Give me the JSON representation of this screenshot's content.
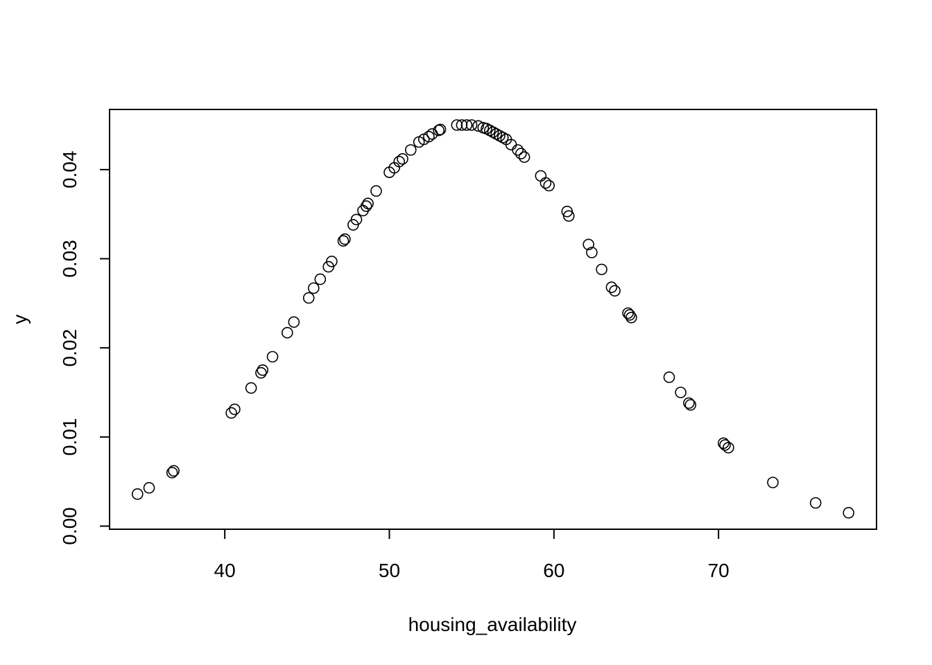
{
  "chart_data": {
    "type": "scatter",
    "title": "",
    "xlabel": "housing_availability",
    "ylabel": "y",
    "xlim": [
      33,
      79.6
    ],
    "ylim": [
      -0.00035,
      0.04675
    ],
    "x_ticks": [
      40,
      50,
      60,
      70
    ],
    "x_tick_labels": [
      "40",
      "50",
      "60",
      "70"
    ],
    "y_ticks": [
      0.0,
      0.01,
      0.02,
      0.03,
      0.04
    ],
    "y_tick_labels": [
      "0.00",
      "0.01",
      "0.02",
      "0.03",
      "0.04"
    ],
    "grid": false,
    "legend": "none",
    "marker": "open-circle",
    "points": [
      {
        "x": 34.7,
        "y": 0.0036
      },
      {
        "x": 35.4,
        "y": 0.0043
      },
      {
        "x": 36.8,
        "y": 0.006
      },
      {
        "x": 36.9,
        "y": 0.0062
      },
      {
        "x": 40.4,
        "y": 0.0127
      },
      {
        "x": 40.6,
        "y": 0.0131
      },
      {
        "x": 41.6,
        "y": 0.0155
      },
      {
        "x": 42.2,
        "y": 0.0172
      },
      {
        "x": 42.3,
        "y": 0.0175
      },
      {
        "x": 42.9,
        "y": 0.019
      },
      {
        "x": 43.8,
        "y": 0.0217
      },
      {
        "x": 44.2,
        "y": 0.0229
      },
      {
        "x": 45.1,
        "y": 0.0256
      },
      {
        "x": 45.4,
        "y": 0.0267
      },
      {
        "x": 45.8,
        "y": 0.0277
      },
      {
        "x": 46.3,
        "y": 0.0291
      },
      {
        "x": 46.5,
        "y": 0.0297
      },
      {
        "x": 47.2,
        "y": 0.032
      },
      {
        "x": 47.3,
        "y": 0.0322
      },
      {
        "x": 47.8,
        "y": 0.0338
      },
      {
        "x": 48.0,
        "y": 0.0344
      },
      {
        "x": 48.4,
        "y": 0.0354
      },
      {
        "x": 48.6,
        "y": 0.0359
      },
      {
        "x": 48.7,
        "y": 0.0362
      },
      {
        "x": 49.2,
        "y": 0.0376
      },
      {
        "x": 50.0,
        "y": 0.0397
      },
      {
        "x": 50.3,
        "y": 0.0402
      },
      {
        "x": 50.6,
        "y": 0.0409
      },
      {
        "x": 50.8,
        "y": 0.0412
      },
      {
        "x": 51.3,
        "y": 0.0422
      },
      {
        "x": 51.8,
        "y": 0.0431
      },
      {
        "x": 52.1,
        "y": 0.0434
      },
      {
        "x": 52.4,
        "y": 0.0437
      },
      {
        "x": 52.6,
        "y": 0.044
      },
      {
        "x": 53.0,
        "y": 0.0444
      },
      {
        "x": 53.1,
        "y": 0.0445
      },
      {
        "x": 54.1,
        "y": 0.045
      },
      {
        "x": 54.4,
        "y": 0.045
      },
      {
        "x": 54.7,
        "y": 0.045
      },
      {
        "x": 55.0,
        "y": 0.045
      },
      {
        "x": 55.4,
        "y": 0.0449
      },
      {
        "x": 55.7,
        "y": 0.0447
      },
      {
        "x": 55.9,
        "y": 0.0446
      },
      {
        "x": 56.1,
        "y": 0.0444
      },
      {
        "x": 56.3,
        "y": 0.0442
      },
      {
        "x": 56.5,
        "y": 0.044
      },
      {
        "x": 56.7,
        "y": 0.0438
      },
      {
        "x": 56.9,
        "y": 0.0436
      },
      {
        "x": 57.1,
        "y": 0.0434
      },
      {
        "x": 57.4,
        "y": 0.0428
      },
      {
        "x": 57.8,
        "y": 0.0422
      },
      {
        "x": 58.0,
        "y": 0.0418
      },
      {
        "x": 58.2,
        "y": 0.0414
      },
      {
        "x": 59.2,
        "y": 0.0393
      },
      {
        "x": 59.5,
        "y": 0.0385
      },
      {
        "x": 59.7,
        "y": 0.0382
      },
      {
        "x": 60.8,
        "y": 0.0353
      },
      {
        "x": 60.9,
        "y": 0.0348
      },
      {
        "x": 62.1,
        "y": 0.0316
      },
      {
        "x": 62.3,
        "y": 0.0307
      },
      {
        "x": 62.9,
        "y": 0.0288
      },
      {
        "x": 63.5,
        "y": 0.0268
      },
      {
        "x": 63.7,
        "y": 0.0264
      },
      {
        "x": 64.5,
        "y": 0.0239
      },
      {
        "x": 64.6,
        "y": 0.0237
      },
      {
        "x": 64.7,
        "y": 0.0234
      },
      {
        "x": 67.0,
        "y": 0.0167
      },
      {
        "x": 67.7,
        "y": 0.015
      },
      {
        "x": 68.2,
        "y": 0.0138
      },
      {
        "x": 68.3,
        "y": 0.0136
      },
      {
        "x": 70.3,
        "y": 0.0093
      },
      {
        "x": 70.4,
        "y": 0.0091
      },
      {
        "x": 70.6,
        "y": 0.0088
      },
      {
        "x": 73.3,
        "y": 0.0049
      },
      {
        "x": 75.9,
        "y": 0.0026
      },
      {
        "x": 77.9,
        "y": 0.0015
      }
    ]
  }
}
